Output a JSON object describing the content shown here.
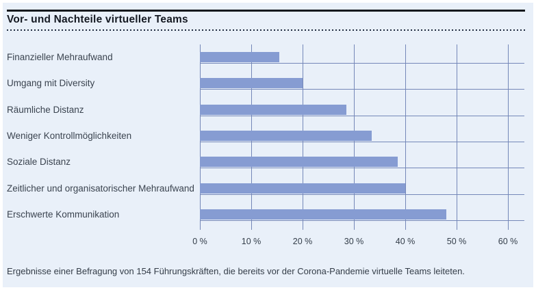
{
  "panel": {
    "title": "Vor- und Nachteile virtueller Teams",
    "footer": "Ergebnisse einer Befragung von 154 Führungskräften, die bereits vor der Corona-Pandemie virtuelle Teams leiteten."
  },
  "colors": {
    "panel_background": "#e9f0f9",
    "bar": "#869cd2",
    "gridline": "#7487b8",
    "title_text": "#141922",
    "label_text": "#3a434f",
    "rule": "#15181d",
    "dotted_rule": "#1e2a3f"
  },
  "chart_data": {
    "type": "bar",
    "orientation": "horizontal",
    "title": "Vor- und Nachteile virtueller Teams",
    "categories": [
      "Finanzieller Mehraufwand",
      "Umgang mit Diversity",
      "Räumliche Distanz",
      "Weniger Kontrollmöglichkeiten",
      "Soziale Distanz",
      "Zeitlicher und organisatorischer Mehraufwand",
      "Erschwerte Kommunikation"
    ],
    "values": [
      15.5,
      20,
      28.5,
      33.5,
      38.5,
      40,
      48
    ],
    "unit": "%",
    "x_ticks": [
      "0 %",
      "10 %",
      "20 %",
      "30 %",
      "40 %",
      "50 %",
      "60 %"
    ],
    "x_tick_values": [
      0,
      10,
      20,
      30,
      40,
      50,
      60
    ],
    "xlim": [
      0,
      63
    ],
    "grid": true,
    "legend": false,
    "note": "Ergebnisse einer Befragung von 154 Führungskräften, die bereits vor der Corona-Pandemie virtuelle Teams leiteten."
  }
}
